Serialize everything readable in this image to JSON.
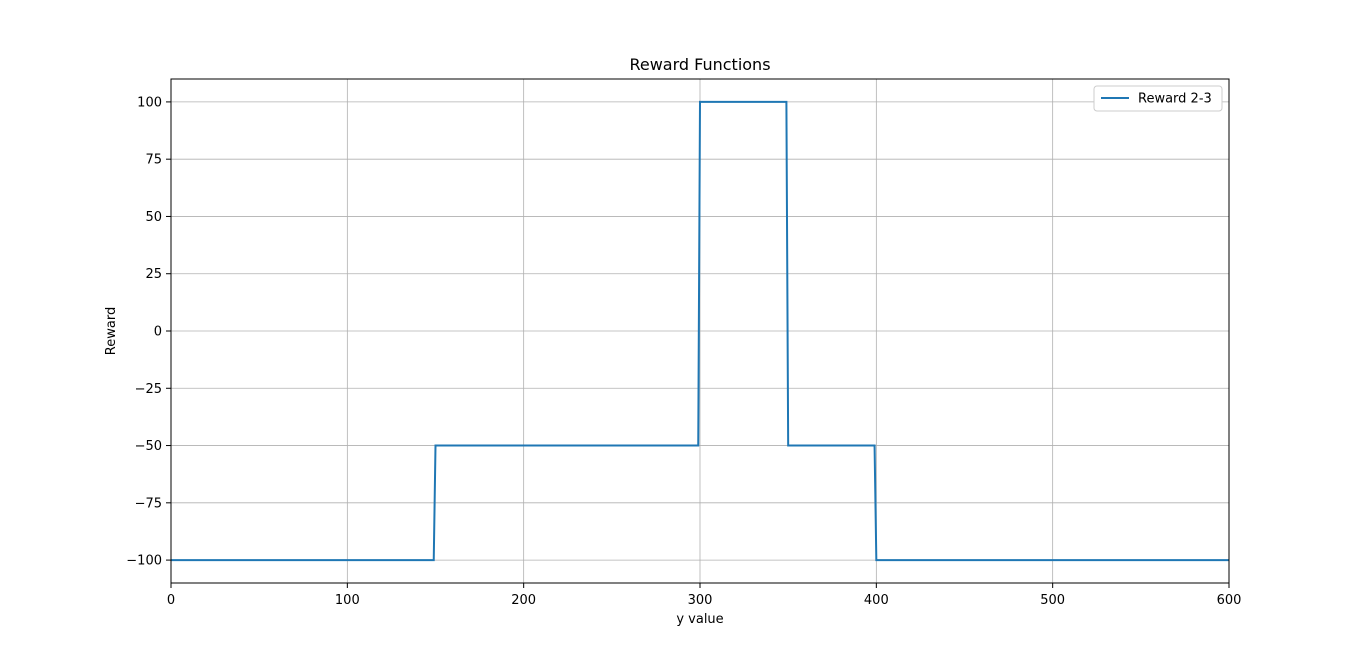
{
  "chart_data": {
    "type": "line",
    "title": "Reward Functions",
    "xlabel": "y value",
    "ylabel": "Reward",
    "xlim": [
      0,
      600
    ],
    "ylim": [
      -110,
      110
    ],
    "x_ticks": [
      0,
      100,
      200,
      300,
      400,
      500,
      600
    ],
    "y_ticks": [
      -100,
      -75,
      -50,
      -25,
      0,
      25,
      50,
      75,
      100
    ],
    "x_tick_labels": [
      "0",
      "100",
      "200",
      "300",
      "400",
      "500",
      "600"
    ],
    "y_tick_labels": [
      "−100",
      "−75",
      "−50",
      "−25",
      "0",
      "25",
      "50",
      "75",
      "100"
    ],
    "grid": true,
    "legend_position": "upper right",
    "series": [
      {
        "name": "Reward 2-3",
        "color": "#1f77b4",
        "x": [
          0,
          149,
          150,
          299,
          300,
          349,
          350,
          399,
          400,
          600
        ],
        "y": [
          -100,
          -100,
          -50,
          -50,
          100,
          100,
          -50,
          -50,
          -100,
          -100
        ]
      }
    ]
  }
}
